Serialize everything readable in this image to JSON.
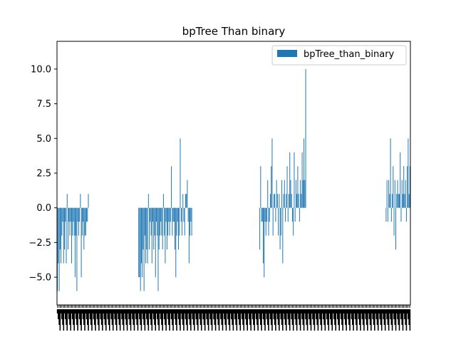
{
  "chart_data": {
    "type": "bar",
    "title": "bpTree Than binary",
    "xlabel": "",
    "ylabel": "",
    "ylim": [
      -7,
      12
    ],
    "yticks": [
      -5.0,
      -2.5,
      0.0,
      2.5,
      5.0,
      7.5,
      10.0
    ],
    "ytick_labels": [
      "−5.0",
      "−2.5",
      "0.0",
      "2.5",
      "5.0",
      "7.5",
      "10.0"
    ],
    "legend_position": "top-right",
    "grid": false,
    "color": "#1f77b4",
    "series": [
      {
        "name": "bpTree_than_binary",
        "values": [
          -6,
          -4,
          -6,
          -3,
          -4,
          -2,
          -1,
          -4,
          -3,
          -1,
          -4,
          1,
          -3,
          -1,
          -2,
          -1,
          -4,
          -2,
          -1,
          -2,
          -5,
          -2,
          -6,
          -1,
          -2,
          -1,
          1,
          -5,
          -2,
          -1,
          -3,
          -2,
          -2,
          -1,
          -1,
          1,
          0,
          0,
          0,
          0,
          0,
          0,
          0,
          0,
          0,
          0,
          0,
          0,
          0,
          0,
          0,
          0,
          0,
          0,
          0,
          0,
          0,
          0,
          0,
          0,
          0,
          0,
          0,
          0,
          0,
          0,
          0,
          0,
          0,
          0,
          0,
          0,
          0,
          0,
          0,
          0,
          0,
          0,
          0,
          0,
          0,
          0,
          0,
          0,
          0,
          0,
          0,
          0,
          0,
          0,
          0,
          0,
          -5,
          -5,
          -6,
          -4,
          -5,
          -3,
          -6,
          -2,
          -4,
          -3,
          -4,
          1,
          -3,
          -1,
          -2,
          -4,
          -1,
          -3,
          -2,
          -5,
          -1,
          -2,
          -6,
          -3,
          -2,
          -1,
          -2,
          -3,
          1,
          -2,
          -4,
          -1,
          -3,
          -2,
          -1,
          -2,
          -1,
          3,
          -2,
          -1,
          -1,
          -3,
          -5,
          -2,
          -1,
          -3,
          -2,
          5,
          -1,
          -2,
          1,
          -1,
          -2,
          1,
          1,
          2,
          -1,
          -4,
          -2,
          -1,
          -2,
          0,
          0,
          0,
          0,
          0,
          0,
          0,
          0,
          0,
          0,
          0,
          0,
          0,
          0,
          0,
          0,
          0,
          0,
          0,
          0,
          0,
          0,
          0,
          0,
          0,
          0,
          0,
          0,
          0,
          0,
          0,
          0,
          0,
          0,
          0,
          0,
          0,
          0,
          0,
          0,
          0,
          0,
          0,
          0,
          0,
          0,
          0,
          0,
          0,
          0,
          0,
          0,
          0,
          0,
          0,
          0,
          0,
          0,
          0,
          0,
          0,
          0,
          0,
          0,
          0,
          0,
          0,
          0,
          0,
          0,
          0,
          0,
          0,
          0,
          0,
          0,
          -3,
          3,
          -1,
          -1,
          -4,
          -5,
          -1,
          -2,
          -1,
          2,
          -2,
          -1,
          1,
          3,
          5,
          -2,
          1,
          1,
          -1,
          2,
          1,
          -2,
          1,
          -3,
          -2,
          2,
          -4,
          1,
          2,
          -1,
          1,
          3,
          -1,
          1,
          4,
          2,
          1,
          -1,
          -2,
          4,
          -1,
          2,
          1,
          3,
          1,
          -1,
          2,
          1,
          4,
          2,
          5,
          2,
          10,
          0,
          0,
          0,
          0,
          0,
          0,
          0,
          0,
          0,
          0,
          0,
          0,
          0,
          0,
          0,
          0,
          0,
          0,
          0,
          0,
          0,
          0,
          0,
          0,
          0,
          0,
          0,
          0,
          0,
          0,
          0,
          0,
          0,
          0,
          0,
          0,
          0,
          0,
          0,
          0,
          0,
          0,
          0,
          0,
          0,
          0,
          0,
          0,
          0,
          0,
          0,
          0,
          0,
          0,
          0,
          0,
          0,
          0,
          0,
          0,
          0,
          0,
          0,
          0,
          0,
          0,
          0,
          0,
          0,
          0,
          0,
          0,
          0,
          0,
          0,
          0,
          0,
          0,
          0,
          0,
          0,
          0,
          0,
          0,
          0,
          0,
          0,
          0,
          0,
          0,
          -1,
          2,
          -1,
          2,
          1,
          5,
          -1,
          1,
          3,
          -2,
          2,
          -3,
          1,
          2,
          1,
          1,
          4,
          -1,
          2,
          1,
          3,
          1,
          2,
          -1,
          3,
          5,
          1,
          3
        ]
      }
    ]
  }
}
